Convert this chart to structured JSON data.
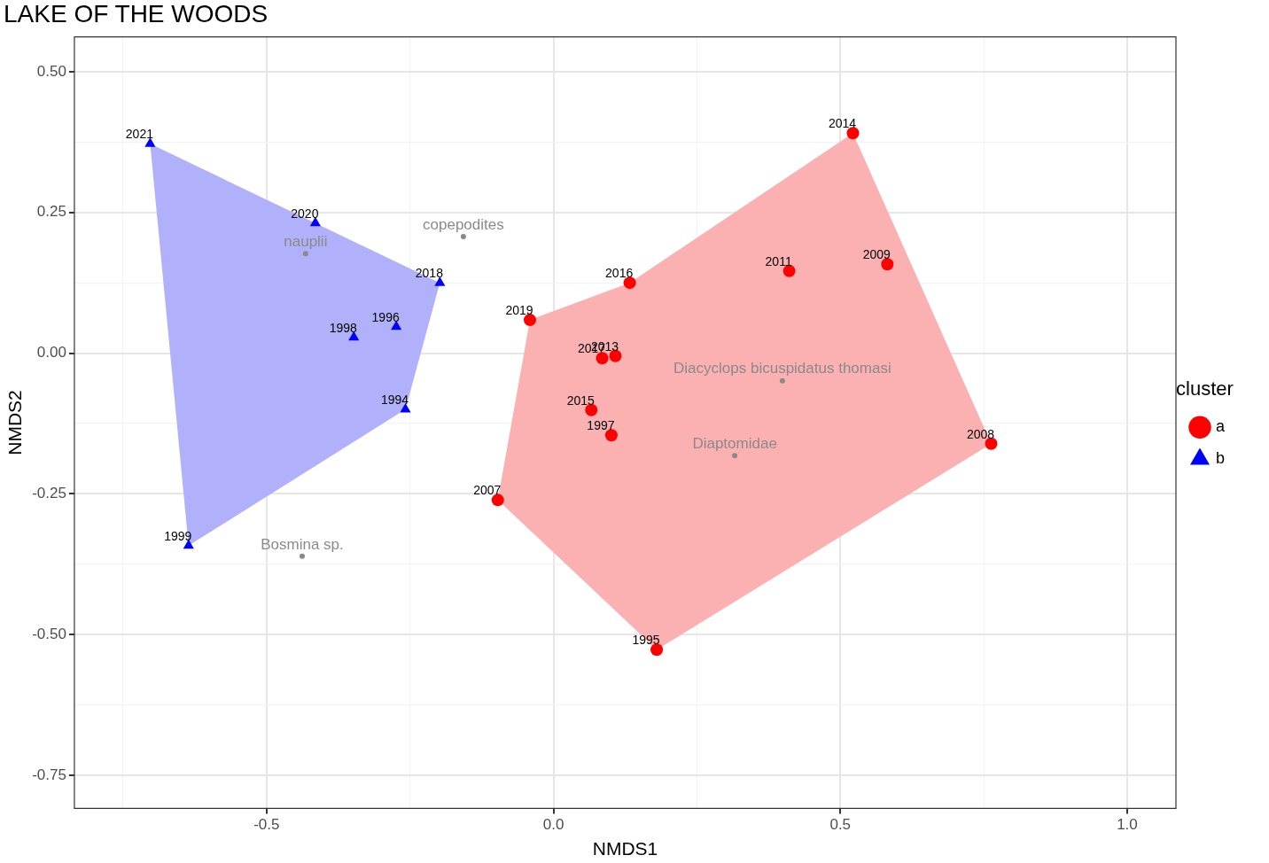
{
  "chart_data": {
    "type": "scatter",
    "title": "LAKE OF THE WOODS",
    "xlabel": "NMDS1",
    "ylabel": "NMDS2",
    "legend_title": "cluster",
    "legend": "right",
    "xlim": [
      -0.835,
      1.085
    ],
    "ylim": [
      -0.809,
      0.562
    ],
    "xticks": [
      {
        "value": -0.75,
        "label": null
      },
      {
        "value": -0.5,
        "label": "-0.5"
      },
      {
        "value": -0.25,
        "label": null
      },
      {
        "value": 0,
        "label": "0.0"
      },
      {
        "value": 0.25,
        "label": null
      },
      {
        "value": 0.5,
        "label": "0.5"
      },
      {
        "value": 0.75,
        "label": null
      },
      {
        "value": 1,
        "label": "1.0"
      }
    ],
    "yticks": [
      {
        "value": -0.75,
        "label": "-0.75"
      },
      {
        "value": -0.625,
        "label": null
      },
      {
        "value": -0.5,
        "label": "-0.50"
      },
      {
        "value": -0.375,
        "label": null
      },
      {
        "value": -0.25,
        "label": "-0.25"
      },
      {
        "value": -0.125,
        "label": null
      },
      {
        "value": 0,
        "label": "0.00"
      },
      {
        "value": 0.125,
        "label": null
      },
      {
        "value": 0.25,
        "label": "0.25"
      },
      {
        "value": 0.375,
        "label": null
      },
      {
        "value": 0.5,
        "label": "0.50"
      }
    ],
    "grid": true,
    "series": [
      {
        "name": "a",
        "color": "#ff0000",
        "marker": "circle",
        "x": [
          0.522,
          0.582,
          0.411,
          0.133,
          -0.041,
          0.085,
          0.108,
          0.066,
          0.101,
          0.763,
          -0.097,
          0.18
        ],
        "values": [
          0.391,
          0.158,
          0.146,
          0.125,
          0.059,
          -0.009,
          -0.005,
          -0.101,
          -0.146,
          -0.161,
          -0.261,
          -0.527
        ]
      },
      {
        "name": "b",
        "color": "#0000ff",
        "marker": "triangle",
        "x": [
          -0.703,
          -0.415,
          -0.198,
          -0.274,
          -0.348,
          -0.258,
          -0.636
        ],
        "values": [
          0.372,
          0.231,
          0.125,
          0.047,
          0.028,
          -0.1,
          -0.342
        ]
      },
      {
        "type": "area",
        "color": "#fbb1b1",
        "x": [
          0.522,
          0.763,
          0.18,
          -0.097,
          -0.041,
          0.133,
          0.522
        ],
        "values": [
          0.391,
          -0.161,
          -0.527,
          -0.261,
          0.059,
          0.125,
          0.391
        ]
      },
      {
        "type": "area",
        "color": "#b1b1fb",
        "x": [
          -0.703,
          -0.415,
          -0.198,
          -0.258,
          -0.636,
          -0.703
        ],
        "values": [
          0.372,
          0.231,
          0.125,
          -0.1,
          -0.342,
          0.372
        ]
      },
      {
        "type": "scatter",
        "marker": "circle",
        "color": "#8a8a8a",
        "x": [
          -0.157,
          -0.432,
          0.399,
          0.316,
          -0.438
        ],
        "values": [
          0.207,
          0.177,
          -0.049,
          -0.182,
          -0.361
        ],
        "value_labels": [
          "copepodites",
          "nauplii",
          "Diacyclops bicuspidatus thomasi",
          "Diaptomidae",
          "Bosmina sp."
        ]
      }
    ],
    "annotations": [
      {
        "text": "2014",
        "x": 0.522,
        "y": 0.391
      },
      {
        "text": "2009",
        "x": 0.582,
        "y": 0.158
      },
      {
        "text": "2011",
        "x": 0.411,
        "y": 0.146
      },
      {
        "text": "2016",
        "x": 0.133,
        "y": 0.125
      },
      {
        "text": "2019",
        "x": -0.041,
        "y": 0.059
      },
      {
        "text": "2017",
        "x": 0.085,
        "y": -0.009
      },
      {
        "text": "2013",
        "x": 0.108,
        "y": -0.005
      },
      {
        "text": "2015",
        "x": 0.066,
        "y": -0.101
      },
      {
        "text": "1997",
        "x": 0.101,
        "y": -0.146
      },
      {
        "text": "2008",
        "x": 0.763,
        "y": -0.161
      },
      {
        "text": "2007",
        "x": -0.097,
        "y": -0.261
      },
      {
        "text": "1995",
        "x": 0.18,
        "y": -0.527
      },
      {
        "text": "2021",
        "x": -0.703,
        "y": 0.372
      },
      {
        "text": "2020",
        "x": -0.415,
        "y": 0.231
      },
      {
        "text": "2018",
        "x": -0.198,
        "y": 0.125
      },
      {
        "text": "1996",
        "x": -0.274,
        "y": 0.047
      },
      {
        "text": "1998",
        "x": -0.348,
        "y": 0.028
      },
      {
        "text": "1994",
        "x": -0.258,
        "y": -0.1
      },
      {
        "text": "1999",
        "x": -0.636,
        "y": -0.342
      }
    ]
  }
}
